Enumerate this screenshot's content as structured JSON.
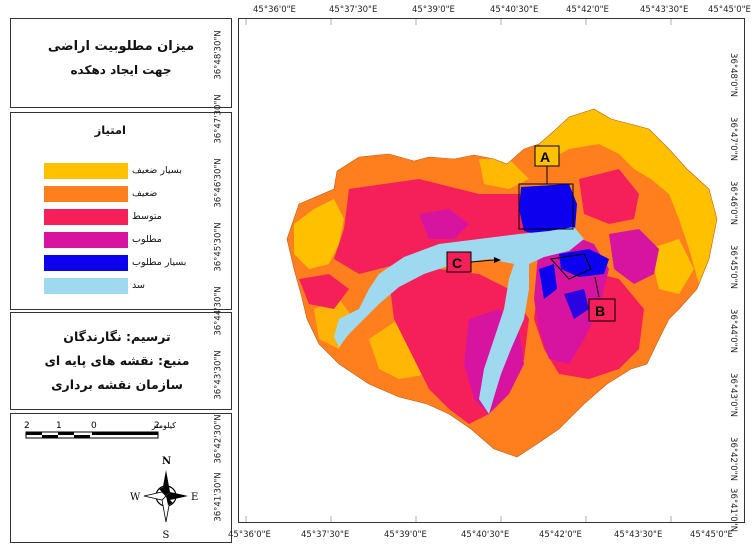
{
  "title": {
    "line1": "میزان مطلوبیت اراضی",
    "line2": "جهت ایجاد دهکده"
  },
  "legend": {
    "heading": "امتیاز",
    "items": [
      {
        "label": "بسیار ضعیف",
        "color": "#ffc000"
      },
      {
        "label": "ضعیف",
        "color": "#ff7f1f"
      },
      {
        "label": "متوسط",
        "color": "#f5205a"
      },
      {
        "label": "مطلوب",
        "color": "#d6149f"
      },
      {
        "label": "بسیار مطلوب",
        "color": "#0c00ef"
      },
      {
        "label": "سد",
        "color": "#9fd9ef"
      }
    ]
  },
  "credits": {
    "line1": "ترسیم: نگارندگان",
    "line2": "منبع: نقشه های پایه ای",
    "line3": "سازمان نقشه برداری"
  },
  "scalebar": {
    "unit": "کیلومتر",
    "labels": [
      "2",
      "1",
      "0",
      "2"
    ]
  },
  "north_arrow": {
    "n": "N",
    "s": "S",
    "e": "E",
    "w": "W"
  },
  "grid": {
    "top_ticks": [
      "45°36'0\"E",
      "45°37'30\"E",
      "45°39'0\"E",
      "45°40'30\"E",
      "45°42'0\"E",
      "45°43'30\"E",
      "45°45'0\"E"
    ],
    "bottom_ticks": [
      "45°36'0\"E",
      "45°37'30\"E",
      "45°39'0\"E",
      "45°40'30\"E",
      "45°42'0\"E",
      "45°43'30\"E",
      "45°45'0\"E"
    ],
    "left_ticks": [
      "36°48'30\"N",
      "36°47'30\"N",
      "36°46'30\"N",
      "36°45'30\"N",
      "36°44'30\"N",
      "36°43'30\"N",
      "36°42'30\"N",
      "36°41'30\"N"
    ],
    "right_ticks": [
      "36°48'0\"N",
      "36°47'0\"N",
      "36°46'0\"N",
      "36°45'0\"N",
      "36°44'0\"N",
      "36°43'0\"N",
      "36°42'0\"N",
      "36°41'0\"N"
    ]
  },
  "callouts": {
    "a": "A",
    "b": "B",
    "c": "C"
  },
  "colors": {
    "very_weak": "#ffc000",
    "weak": "#ff7f1f",
    "medium": "#f5205a",
    "good": "#d6149f",
    "very_good": "#0c00ef",
    "dam": "#9fd9ef"
  }
}
